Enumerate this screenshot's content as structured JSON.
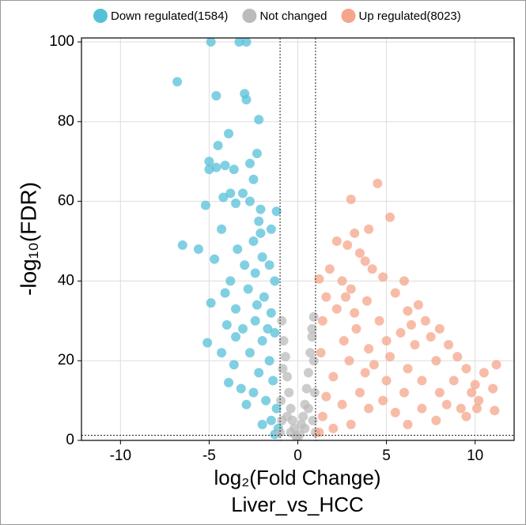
{
  "chart_data": {
    "type": "scatter",
    "xlabel": "log₂(Fold Change)",
    "subtitle": "Liver_vs_HCC",
    "ylabel": "-log₁₀(FDR)",
    "xlim": [
      -12.2,
      12.2
    ],
    "ylim": [
      0,
      101
    ],
    "xticks": [
      -10,
      -5,
      0,
      5,
      10
    ],
    "yticks": [
      0,
      20,
      40,
      60,
      80,
      100
    ],
    "grid": true,
    "vlines": [
      -1,
      1
    ],
    "hline": 1.3,
    "legend": "top",
    "series": [
      {
        "name": "Down regulated(1584)",
        "color": "#56c0d8",
        "x": [
          -4.9,
          -3.3,
          -2.9,
          -6.8,
          -4.6,
          -3.0,
          -2.9,
          -2.2,
          -3.9,
          -4.5,
          -2.3,
          -5.0,
          -4.6,
          -5.0,
          -3.6,
          -4.1,
          -2.7,
          -2.5,
          -3.1,
          -3.8,
          -4.2,
          -2.7,
          -5.2,
          -3.5,
          -2.1,
          -1.2,
          -2.2,
          -4.3,
          -6.5,
          -5.6,
          -2.1,
          -1.5,
          -2.5,
          -3.4,
          -2.0,
          -4.7,
          -3.0,
          -1.6,
          -2.4,
          -3.8,
          -1.3,
          -2.8,
          -4.1,
          -1.9,
          -4.9,
          -3.5,
          -1.5,
          -2.4,
          -3.1,
          -4.0,
          -1.3,
          -2.0,
          -5.1,
          -4.3,
          -2.7,
          -1.6,
          -3.6,
          -3.9,
          -2.2,
          -1.4,
          -3.2,
          -2.5,
          -1.8,
          -1.2,
          -2.9,
          -1.5,
          -2.0,
          -1.1,
          -1.3,
          -3.5,
          -2.3,
          -1.7
        ],
        "y": [
          100,
          100,
          100,
          90,
          86.5,
          87,
          85.5,
          80.5,
          77,
          74,
          72,
          70,
          68.5,
          68,
          68,
          69,
          69.5,
          65.5,
          62,
          62,
          61,
          60,
          59,
          59.5,
          58,
          57.5,
          55,
          53,
          49,
          48,
          52,
          53,
          50,
          48,
          46,
          45.5,
          44,
          44,
          42,
          40,
          40,
          38,
          37,
          36,
          34.5,
          33,
          32,
          30,
          28,
          29,
          27,
          25,
          24.5,
          22,
          22,
          20,
          19,
          14.5,
          17,
          15,
          13,
          12,
          10,
          8,
          9,
          5,
          4,
          3,
          1.5,
          26,
          34,
          28
        ]
      },
      {
        "name": "Not changed",
        "color": "#bbbbbb",
        "x": [
          -0.9,
          -0.8,
          -0.7,
          -0.6,
          -0.5,
          -0.4,
          -0.3,
          -0.2,
          -0.1,
          0,
          0.1,
          0.2,
          0.3,
          0.4,
          0.5,
          0.6,
          0.7,
          0.8,
          0.9,
          -0.95,
          -0.9,
          -0.85,
          0.95,
          0.85,
          0.9,
          -0.6,
          0.6,
          -0.4,
          0.4,
          1.0,
          -1.0,
          0.8
        ],
        "y": [
          30,
          25,
          21,
          16,
          12,
          8,
          5,
          3,
          1,
          0.5,
          1.5,
          4,
          6,
          9,
          13,
          17,
          22,
          26,
          31,
          10,
          5,
          18,
          12,
          5,
          20,
          6,
          8,
          2,
          3,
          2,
          2,
          28
        ]
      },
      {
        "name": "Up regulated(8023)",
        "color": "#f4a58a",
        "x": [
          4.5,
          3.0,
          5.2,
          3.2,
          4.0,
          2.2,
          2.8,
          3.5,
          3.8,
          1.8,
          4.2,
          2.5,
          1.2,
          4.8,
          6.0,
          3.0,
          5.5,
          1.6,
          6.8,
          6.2,
          3.9,
          2.2,
          7.2,
          6.4,
          8.0,
          4.6,
          1.4,
          5.8,
          3.3,
          7.5,
          2.6,
          8.5,
          6.6,
          4.0,
          9.0,
          7.8,
          5.2,
          1.3,
          2.9,
          11.2,
          10.5,
          9.5,
          6.2,
          3.8,
          8.8,
          7.0,
          5.0,
          2.0,
          10.0,
          9.8,
          8.0,
          6.0,
          3.5,
          1.6,
          11.0,
          10.2,
          8.4,
          9.2,
          7.0,
          5.5,
          4.0,
          2.5,
          1.4,
          10.1,
          11.1,
          9.5,
          7.8,
          6.2,
          3.0,
          2.0,
          1.2,
          4.8,
          3.2,
          2.7,
          5.0,
          4.3
        ],
        "y": [
          64.5,
          60.5,
          56,
          52,
          53,
          50,
          49,
          47,
          45,
          43,
          43,
          40,
          40.5,
          41,
          40,
          38,
          37,
          36,
          34,
          32.5,
          35,
          33,
          30,
          29,
          28,
          30,
          30,
          27,
          28,
          26,
          25,
          24,
          24,
          23,
          21,
          20,
          21,
          22,
          20,
          19,
          17,
          18,
          18,
          17,
          15,
          15,
          15,
          16,
          14,
          12,
          12,
          12,
          12,
          11,
          13,
          10,
          9,
          8,
          8,
          7,
          8,
          9,
          6,
          8,
          7.5,
          6,
          5,
          4,
          4,
          3,
          2,
          10,
          32,
          36,
          25,
          19
        ]
      }
    ]
  }
}
